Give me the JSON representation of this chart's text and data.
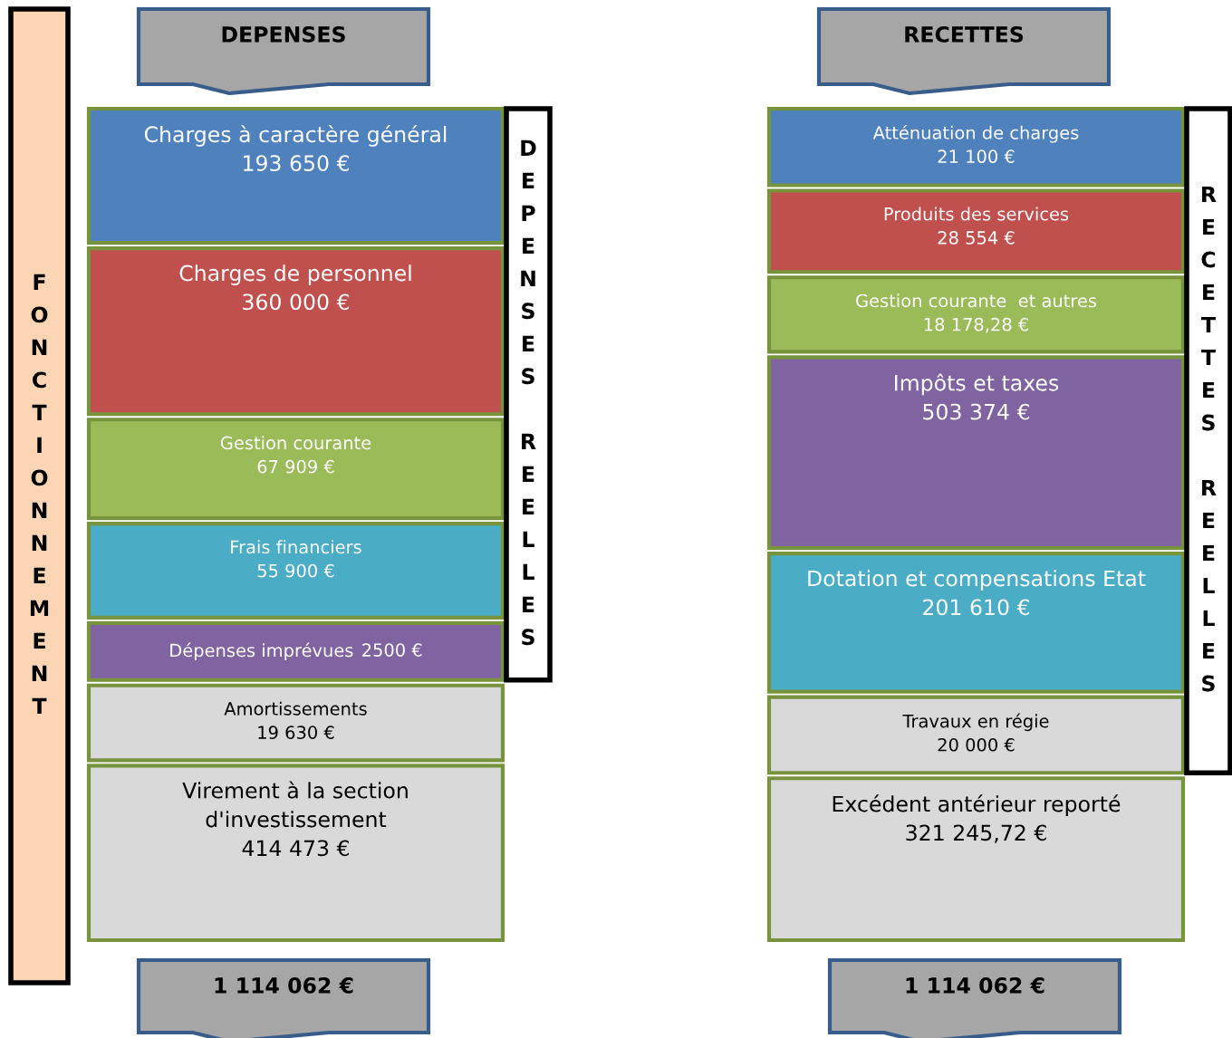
{
  "chart_data": [
    {
      "type": "other",
      "title": "DEPENSES",
      "ylabel": "FONCTIONNEMENT",
      "totals": [
        "1 114 062 €"
      ],
      "data_labels": true,
      "categories": [
        "Charges à caractère général",
        "Charges de personnel",
        "Gestion courante",
        "Frais financiers",
        "Dépenses imprévues",
        "Amortissements",
        "Virement à la section d'investissement"
      ],
      "series": [
        {
          "name": "DEPENSES REELLES",
          "values": [
            193650,
            360000,
            67909,
            55900,
            2500,
            null,
            null
          ],
          "value_labels": [
            "193 650 €",
            "360 000 €",
            "67 909 €",
            "55 900 €",
            "2500 €",
            null,
            null
          ],
          "colors": [
            "#4f81bd",
            "#c0504d",
            "#9bbb59",
            "#4bacc6",
            "#8064a2",
            null,
            null
          ]
        },
        {
          "values": [
            null,
            null,
            null,
            null,
            null,
            19630,
            414473
          ],
          "value_labels": [
            null,
            null,
            null,
            null,
            null,
            "19 630 €",
            "414 473 €"
          ],
          "color": "#d9d9d9"
        }
      ]
    },
    {
      "type": "other",
      "title": "RECETTES",
      "totals": [
        "1 114 062 €"
      ],
      "data_labels": true,
      "categories": [
        "Atténuation de charges",
        "Produits des services",
        "Gestion courante  et autres",
        "Impôts et taxes",
        "Dotation et compensations Etat",
        "Travaux en régie",
        "Excédent antérieur reporté"
      ],
      "series": [
        {
          "name": "RECETTES REELLES",
          "values": [
            21100,
            28554,
            18178.28,
            503374,
            201610,
            20000,
            null
          ],
          "value_labels": [
            "21 100 €",
            "28 554 €",
            "18 178,28 €",
            "503 374 €",
            "201 610 €",
            "20 000 €",
            null
          ],
          "colors": [
            "#4f81bd",
            "#c0504d",
            "#9bbb59",
            "#8064a2",
            "#4bacc6",
            "#d9d9d9",
            null
          ]
        },
        {
          "values": [
            null,
            null,
            null,
            null,
            null,
            null,
            321245.72
          ],
          "value_labels": [
            null,
            null,
            null,
            null,
            null,
            null,
            "321 245,72 €"
          ],
          "color": "#d9d9d9"
        }
      ]
    }
  ]
}
